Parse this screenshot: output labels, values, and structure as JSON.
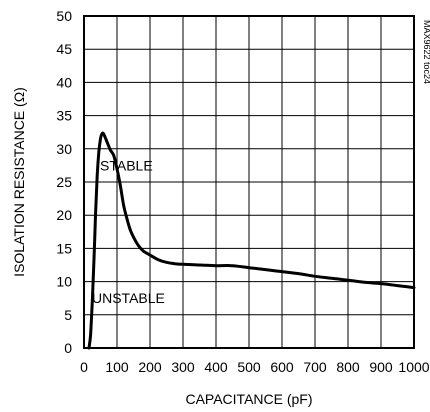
{
  "chart_data": {
    "type": "line",
    "title": "",
    "xlabel": "CAPACITANCE (pF)",
    "ylabel": "ISOLATION RESISTANCE (Ω)",
    "xlim": [
      0,
      1000
    ],
    "ylim": [
      0,
      50
    ],
    "x_ticks": [
      0,
      100,
      200,
      300,
      400,
      500,
      600,
      700,
      800,
      900,
      1000
    ],
    "y_ticks": [
      0,
      5,
      10,
      15,
      20,
      25,
      30,
      35,
      40,
      45,
      50
    ],
    "grid": true,
    "legend": "none",
    "annotations": [
      {
        "text": "STABLE",
        "x": 200,
        "y": 27.5
      },
      {
        "text": "UNSTABLE",
        "x": 200,
        "y": 7.5
      },
      {
        "text": "MAX9622 toc24",
        "x": 1000,
        "y": 50
      }
    ],
    "series": [
      {
        "color": "#000000",
        "x": [
          15,
          20,
          25,
          30,
          35,
          40,
          45,
          50,
          55,
          60,
          70,
          80,
          90,
          100,
          110,
          120,
          130,
          140,
          150,
          160,
          170,
          180,
          200,
          225,
          250,
          275,
          300,
          350,
          400,
          450,
          500,
          550,
          600,
          650,
          700,
          750,
          800,
          850,
          900,
          950,
          1000
        ],
        "y": [
          0,
          2,
          7,
          13,
          20,
          26,
          29.5,
          31.5,
          32.3,
          32.2,
          31,
          29.8,
          29,
          27,
          24.5,
          21.5,
          19.5,
          17.8,
          16.7,
          15.8,
          15.1,
          14.6,
          14,
          13.3,
          12.9,
          12.7,
          12.6,
          12.5,
          12.4,
          12.4,
          12.1,
          11.8,
          11.5,
          11.2,
          10.8,
          10.5,
          10.2,
          9.9,
          9.7,
          9.4,
          9.1
        ]
      }
    ]
  }
}
